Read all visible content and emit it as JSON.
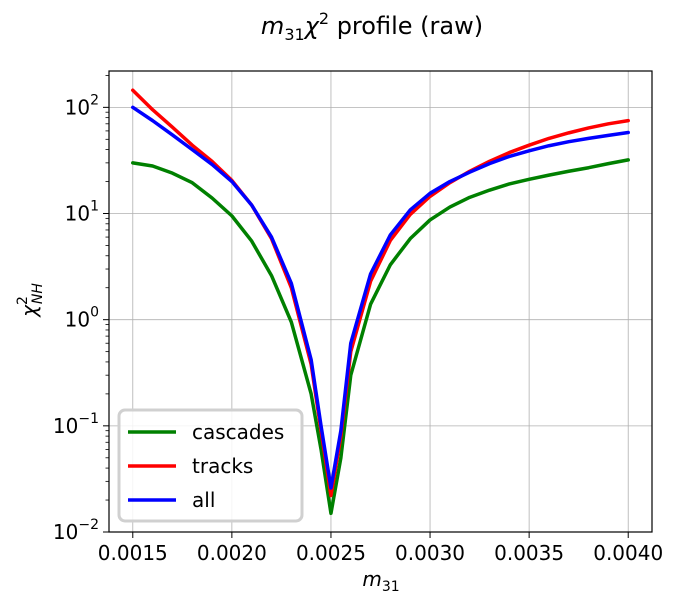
{
  "chart_data": {
    "type": "line",
    "title": {
      "main": "m",
      "main_sub": "31",
      "chi": "χ",
      "chi_sup": "2",
      "rest": " profile (raw)"
    },
    "xlabel": {
      "main": "m",
      "sub": "31"
    },
    "ylabel": {
      "main": "χ",
      "sup": "2",
      "sub": "NH"
    },
    "xlim": [
      0.00138,
      0.00412
    ],
    "ylim": [
      0.01,
      220
    ],
    "yscale": "log",
    "grid": true,
    "legend": {
      "placement": "lower-left"
    },
    "x_ticks": [
      "0.0015",
      "0.0020",
      "0.0025",
      "0.0030",
      "0.0035",
      "0.0040"
    ],
    "x_tick_values": [
      0.0015,
      0.002,
      0.0025,
      0.003,
      0.0035,
      0.004
    ],
    "y_ticks": [
      {
        "value": 0.01,
        "base": "10",
        "exp": "−2"
      },
      {
        "value": 0.1,
        "base": "10",
        "exp": "−1"
      },
      {
        "value": 1,
        "base": "10",
        "exp": "0"
      },
      {
        "value": 10,
        "base": "10",
        "exp": "1"
      },
      {
        "value": 100,
        "base": "10",
        "exp": "2"
      }
    ],
    "x": [
      0.0015,
      0.0016,
      0.0017,
      0.0018,
      0.0019,
      0.002,
      0.0021,
      0.0022,
      0.0023,
      0.0024,
      0.00245,
      0.0025,
      0.00255,
      0.0026,
      0.0027,
      0.0028,
      0.0029,
      0.003,
      0.0031,
      0.0032,
      0.0033,
      0.0034,
      0.0035,
      0.0036,
      0.0037,
      0.0038,
      0.0039,
      0.004
    ],
    "series": [
      {
        "name": "cascades",
        "color": "#008000",
        "values": [
          30,
          28,
          24,
          19.5,
          14,
          9.5,
          5.5,
          2.6,
          0.95,
          0.2,
          0.06,
          0.015,
          0.05,
          0.3,
          1.4,
          3.3,
          5.8,
          8.7,
          11.5,
          14.2,
          16.6,
          19.0,
          21.0,
          23.0,
          25.0,
          27.0,
          29.5,
          32
        ]
      },
      {
        "name": "tracks",
        "color": "#ff0000",
        "values": [
          145,
          95,
          65,
          44,
          31,
          20.5,
          12,
          5.8,
          2.0,
          0.38,
          0.09,
          0.022,
          0.08,
          0.5,
          2.3,
          5.6,
          9.8,
          14.5,
          19.5,
          25.0,
          31.0,
          37.5,
          44.0,
          51.0,
          57.5,
          64.0,
          70.0,
          75
        ]
      },
      {
        "name": "all",
        "color": "#0000ff",
        "values": [
          100,
          75,
          55,
          40,
          29,
          20,
          12,
          6.0,
          2.2,
          0.42,
          0.1,
          0.026,
          0.09,
          0.6,
          2.7,
          6.3,
          10.8,
          15.5,
          20.0,
          24.5,
          29.5,
          34.5,
          39.0,
          43.5,
          47.5,
          51.0,
          54.5,
          58
        ]
      }
    ]
  }
}
